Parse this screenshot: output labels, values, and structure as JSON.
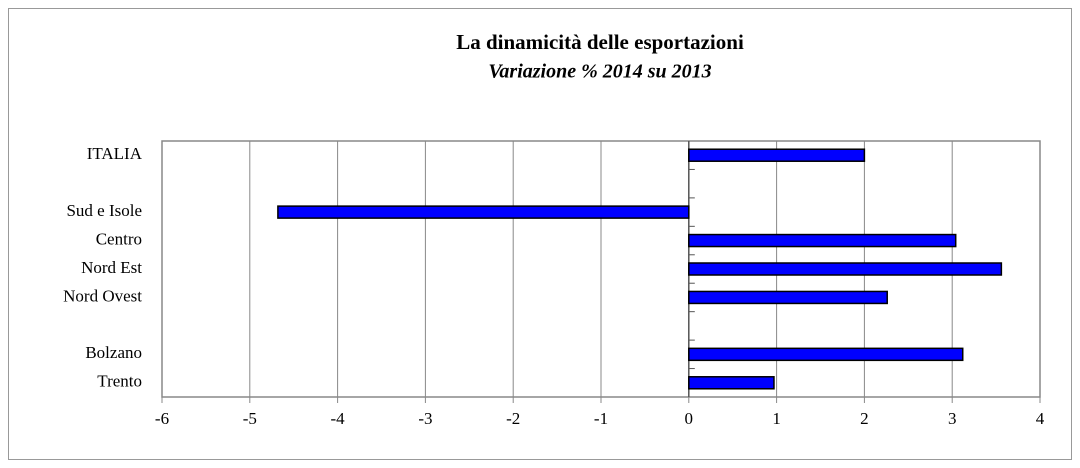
{
  "chart_data": {
    "type": "hbar",
    "title": "La dinamicità delle esportazioni",
    "subtitle": "Variazione % 2014 su 2013",
    "categories": [
      "ITALIA",
      null,
      "Sud e Isole",
      "Centro",
      "Nord Est",
      "Nord Ovest",
      null,
      "Bolzano",
      "Trento"
    ],
    "values": [
      2.0,
      null,
      -4.68,
      3.04,
      3.56,
      2.26,
      null,
      3.12,
      0.97
    ],
    "color": "#0000ff",
    "xlim": [
      -6,
      4
    ],
    "xticks": [
      -6,
      -5,
      -4,
      -3,
      -2,
      -1,
      0,
      1,
      2,
      3,
      4
    ],
    "grid": true
  }
}
